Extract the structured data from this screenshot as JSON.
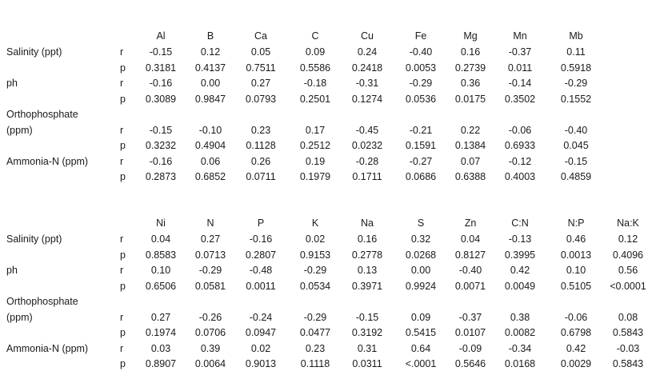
{
  "tables": [
    {
      "headers": [
        "Al",
        "B",
        "Ca",
        "C",
        "Cu",
        "Fe",
        "Mg",
        "Mn",
        "Mb"
      ],
      "rows": [
        {
          "param": "Salinity (ppt)",
          "r": [
            "-0.15",
            "0.12",
            "0.05",
            "0.09",
            "0.24",
            "-0.40",
            "0.16",
            "-0.37",
            "0.11"
          ],
          "p": [
            "0.3181",
            "0.4137",
            "0.7511",
            "0.5586",
            "0.2418",
            "0.0053",
            "0.2739",
            "0.011",
            "0.5918"
          ]
        },
        {
          "param": "ph",
          "r": [
            "-0.16",
            "0.00",
            "0.27",
            "-0.18",
            "-0.31",
            "-0.29",
            "0.36",
            "-0.14",
            "-0.29"
          ],
          "p": [
            "0.3089",
            "0.9847",
            "0.0793",
            "0.2501",
            "0.1274",
            "0.0536",
            "0.0175",
            "0.3502",
            "0.1552"
          ]
        },
        {
          "param": "Orthophosphate",
          "param2": "(ppm)",
          "r": [
            "-0.15",
            "-0.10",
            "0.23",
            "0.17",
            "-0.45",
            "-0.21",
            "0.22",
            "-0.06",
            "-0.40"
          ],
          "p": [
            "0.3232",
            "0.4904",
            "0.1128",
            "0.2512",
            "0.0232",
            "0.1591",
            "0.1384",
            "0.6933",
            "0.045"
          ]
        },
        {
          "param": "Ammonia-N (ppm)",
          "r": [
            "-0.16",
            "0.06",
            "0.26",
            "0.19",
            "-0.28",
            "-0.27",
            "0.07",
            "-0.12",
            "-0.15"
          ],
          "p": [
            "0.2873",
            "0.6852",
            "0.0711",
            "0.1979",
            "0.1711",
            "0.0686",
            "0.6388",
            "0.4003",
            "0.4859"
          ]
        }
      ]
    },
    {
      "headers": [
        "Ni",
        "N",
        "P",
        "K",
        "Na",
        "S",
        "Zn",
        "C:N",
        "N:P",
        "Na:K"
      ],
      "rows": [
        {
          "param": "Salinity (ppt)",
          "r": [
            "0.04",
            "0.27",
            "-0.16",
            "0.02",
            "0.16",
            "0.32",
            "0.04",
            "-0.13",
            "0.46",
            "0.12"
          ],
          "p": [
            "0.8583",
            "0.0713",
            "0.2807",
            "0.9153",
            "0.2778",
            "0.0268",
            "0.8127",
            "0.3995",
            "0.0013",
            "0.4096"
          ]
        },
        {
          "param": "ph",
          "r": [
            "0.10",
            "-0.29",
            "-0.48",
            "-0.29",
            "0.13",
            "0.00",
            "-0.40",
            "0.42",
            "0.10",
            "0.56"
          ],
          "p": [
            "0.6506",
            "0.0581",
            "0.0011",
            "0.0534",
            "0.3971",
            "0.9924",
            "0.0071",
            "0.0049",
            "0.5105",
            "<0.0001"
          ]
        },
        {
          "param": "Orthophosphate",
          "param2": "(ppm)",
          "r": [
            "0.27",
            "-0.26",
            "-0.24",
            "-0.29",
            "-0.15",
            "0.09",
            "-0.37",
            "0.38",
            "-0.06",
            "0.08"
          ],
          "p": [
            "0.1974",
            "0.0706",
            "0.0947",
            "0.0477",
            "0.3192",
            "0.5415",
            "0.0107",
            "0.0082",
            "0.6798",
            "0.5843"
          ]
        },
        {
          "param": "Ammonia-N (ppm)",
          "r": [
            "0.03",
            "0.39",
            "0.02",
            "0.23",
            "0.31",
            "0.64",
            "-0.09",
            "-0.34",
            "0.42",
            "-0.03"
          ],
          "p": [
            "0.8907",
            "0.0064",
            "0.9013",
            "0.1118",
            "0.0311",
            "<.0001",
            "0.5646",
            "0.0168",
            "0.0029",
            "0.5843"
          ]
        }
      ]
    }
  ]
}
